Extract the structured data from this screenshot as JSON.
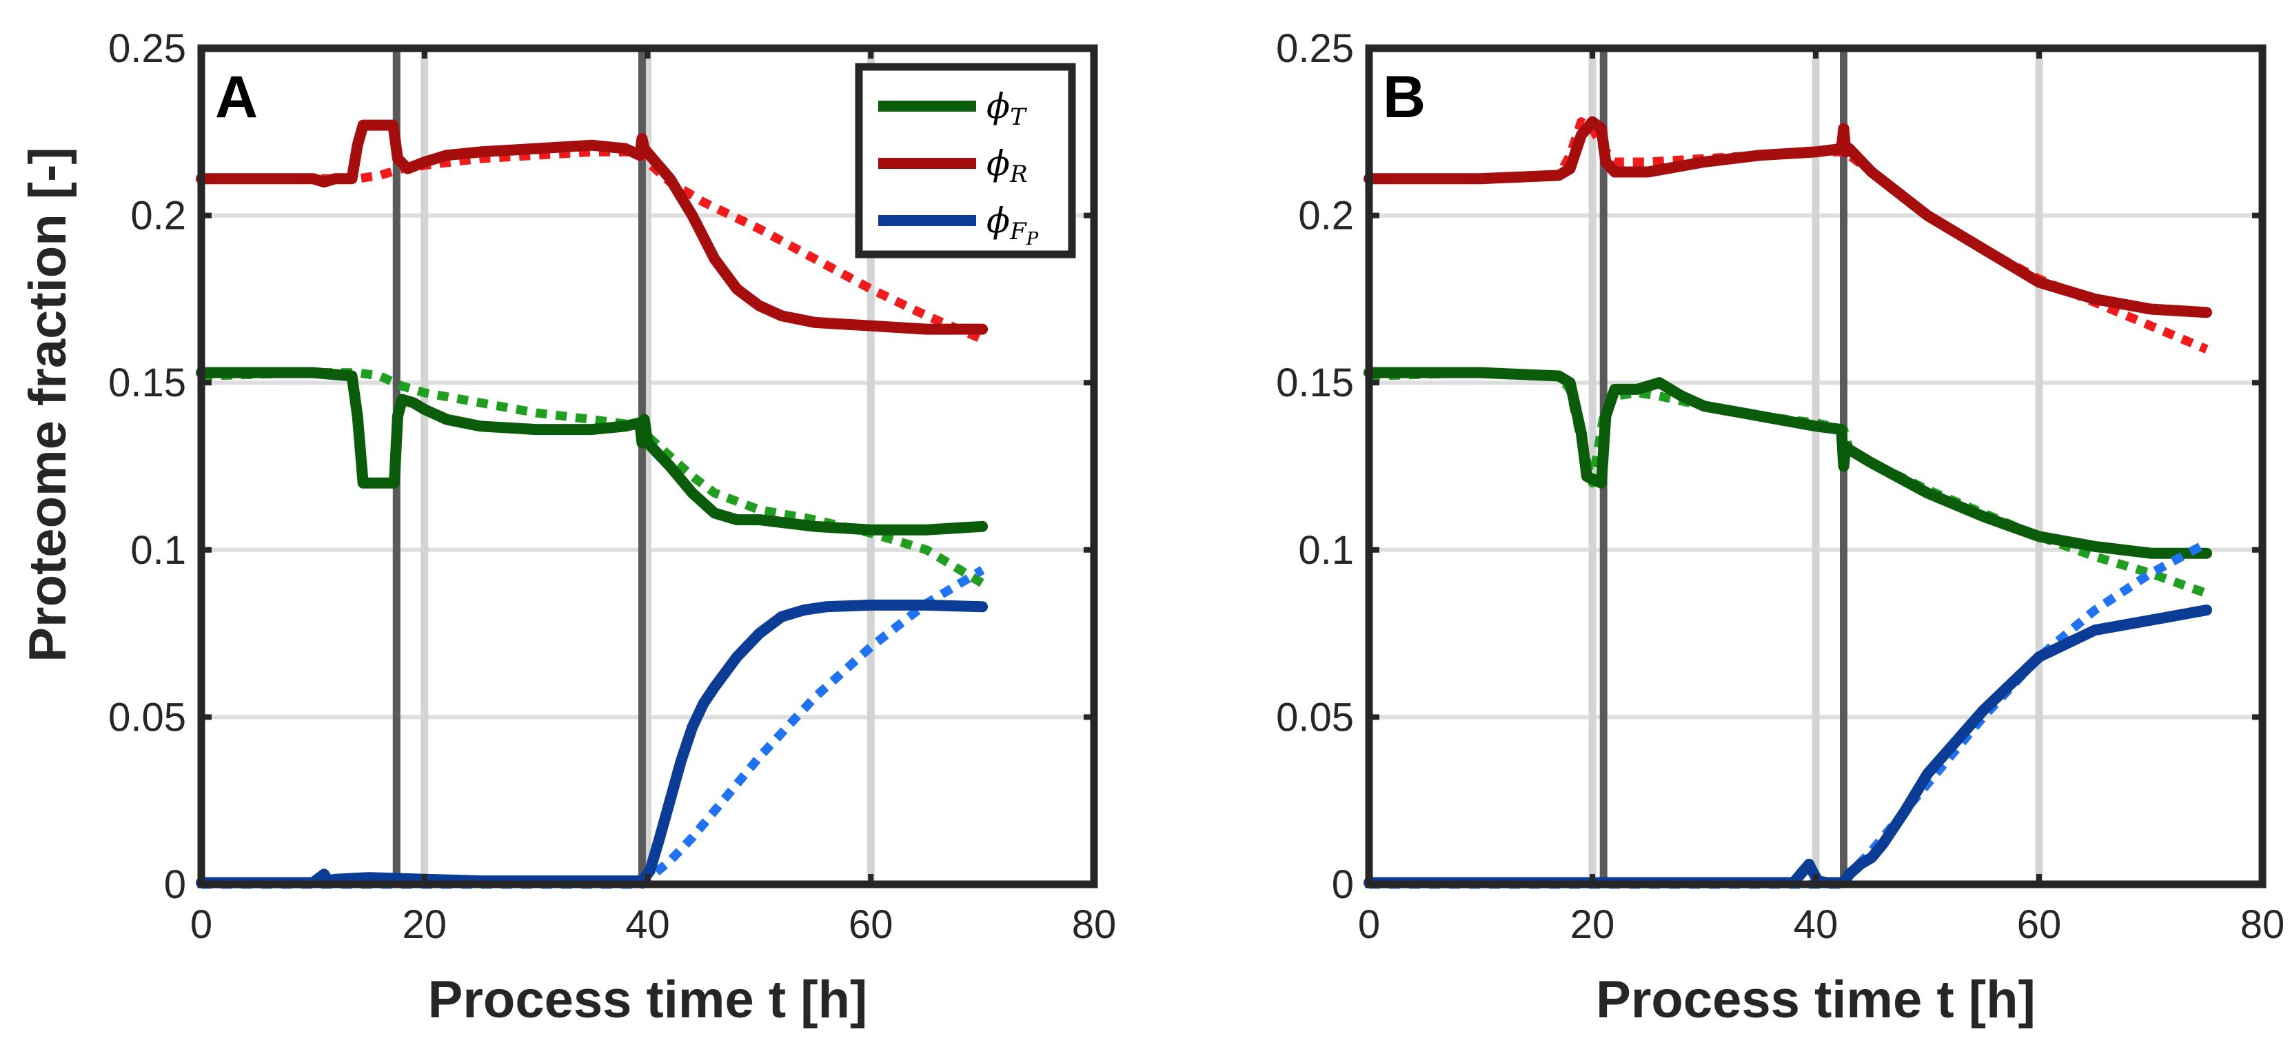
{
  "figure": {
    "y_axis_label": "Proteome fraction [-]",
    "legend": [
      {
        "symbol": "ϕ",
        "subscript": "T",
        "subsub": "",
        "color": "#0a5c0a"
      },
      {
        "symbol": "ϕ",
        "subscript": "R",
        "subsub": "",
        "color": "#a60d0d"
      },
      {
        "symbol": "ϕ",
        "subscript": "F",
        "subsub": "P",
        "color": "#0b3c96"
      }
    ],
    "colors": {
      "measured_T": "#0a5c0a",
      "model_T": "#1f9e1f",
      "measured_R": "#a60d0d",
      "model_R": "#f21a1a",
      "measured_FP": "#0b3c96",
      "model_FP": "#1f73f2",
      "event_line_dark": "#5a5a5a",
      "event_line_light": "#d4d4d4"
    }
  },
  "chart_data": [
    {
      "type": "line",
      "panel": "A",
      "xlabel": "Process time t [h]",
      "ylabel": "Proteome fraction [-]",
      "xlim": [
        0,
        80
      ],
      "ylim": [
        0,
        0.25
      ],
      "xticks": [
        0,
        20,
        40,
        60,
        80
      ],
      "xtick_labels": [
        "0",
        "20",
        "40",
        "60",
        "80"
      ],
      "yticks": [
        0,
        0.05,
        0.1,
        0.15,
        0.2,
        0.25
      ],
      "ytick_labels": [
        "0",
        "0.05",
        "0.1",
        "0.15",
        "0.2",
        "0.25"
      ],
      "grid": true,
      "legend_position": "top-right",
      "event_lines_dark": [
        17.5,
        39.5
      ],
      "event_lines_light": [
        20,
        40,
        60
      ],
      "series": [
        {
          "name": "ϕT measured",
          "key": "measured_T",
          "style": "solid",
          "x": [
            0,
            5,
            10,
            13.5,
            14.0,
            14.5,
            17.3,
            17.6,
            18.0,
            19,
            20,
            22,
            25,
            30,
            35,
            38,
            39.3,
            39.5,
            39.7,
            40,
            42,
            44,
            46,
            48,
            50,
            55,
            60,
            65,
            70
          ],
          "y": [
            0.153,
            0.153,
            0.153,
            0.152,
            0.14,
            0.12,
            0.12,
            0.14,
            0.145,
            0.144,
            0.142,
            0.139,
            0.137,
            0.136,
            0.136,
            0.137,
            0.138,
            0.132,
            0.139,
            0.132,
            0.125,
            0.117,
            0.111,
            0.109,
            0.109,
            0.107,
            0.106,
            0.106,
            0.107
          ]
        },
        {
          "name": "ϕT model",
          "key": "model_T",
          "style": "dotted",
          "x": [
            0,
            10,
            14,
            16,
            18,
            20,
            25,
            30,
            35,
            39.5,
            40,
            42,
            44,
            46,
            50,
            55,
            60,
            65,
            70
          ],
          "y": [
            0.152,
            0.153,
            0.153,
            0.152,
            0.149,
            0.147,
            0.144,
            0.141,
            0.139,
            0.137,
            0.134,
            0.128,
            0.122,
            0.117,
            0.112,
            0.109,
            0.105,
            0.1,
            0.09
          ]
        },
        {
          "name": "ϕR measured",
          "key": "measured_R",
          "style": "solid",
          "x": [
            0,
            5,
            10,
            11,
            12,
            13.5,
            14.0,
            14.5,
            17.2,
            17.6,
            18.5,
            20,
            22,
            25,
            30,
            35,
            38,
            39.3,
            39.5,
            39.7,
            40.2,
            42,
            44,
            46,
            48,
            50,
            52,
            55,
            60,
            65,
            70
          ],
          "y": [
            0.211,
            0.211,
            0.211,
            0.21,
            0.211,
            0.211,
            0.221,
            0.227,
            0.227,
            0.217,
            0.214,
            0.216,
            0.218,
            0.219,
            0.22,
            0.221,
            0.22,
            0.218,
            0.223,
            0.22,
            0.218,
            0.211,
            0.2,
            0.187,
            0.178,
            0.173,
            0.17,
            0.168,
            0.167,
            0.166,
            0.166
          ]
        },
        {
          "name": "ϕR model",
          "key": "model_R",
          "style": "dotted",
          "x": [
            0,
            10,
            14,
            16,
            18,
            20,
            25,
            30,
            35,
            39.5,
            40,
            42,
            45,
            50,
            55,
            60,
            65,
            70
          ],
          "y": [
            0.211,
            0.211,
            0.211,
            0.212,
            0.214,
            0.215,
            0.217,
            0.218,
            0.219,
            0.219,
            0.216,
            0.21,
            0.204,
            0.196,
            0.187,
            0.178,
            0.17,
            0.163
          ]
        },
        {
          "name": "ϕFP measured",
          "key": "measured_FP",
          "style": "solid",
          "x": [
            0,
            10,
            11,
            11.4,
            12,
            15,
            20,
            25,
            30,
            35,
            39.5,
            40.2,
            41,
            42,
            43,
            44,
            45,
            46,
            48,
            50,
            52,
            54,
            56,
            60,
            65,
            70
          ],
          "y": [
            0.0005,
            0.0005,
            0.003,
            0.001,
            0.0015,
            0.002,
            0.0015,
            0.001,
            0.001,
            0.001,
            0.001,
            0.004,
            0.013,
            0.025,
            0.037,
            0.047,
            0.054,
            0.059,
            0.068,
            0.075,
            0.08,
            0.082,
            0.083,
            0.0835,
            0.0835,
            0.083
          ]
        },
        {
          "name": "ϕFP model",
          "key": "model_FP",
          "style": "dotted",
          "x": [
            0,
            10,
            20,
            30,
            39.5,
            40,
            42,
            44,
            46,
            50,
            55,
            60,
            65,
            70
          ],
          "y": [
            0,
            0,
            0,
            0,
            0,
            0.0015,
            0.007,
            0.014,
            0.022,
            0.038,
            0.056,
            0.071,
            0.084,
            0.094
          ]
        }
      ]
    },
    {
      "type": "line",
      "panel": "B",
      "xlabel": "Process time t [h]",
      "ylabel": "",
      "xlim": [
        0,
        80
      ],
      "ylim": [
        0,
        0.25
      ],
      "xticks": [
        0,
        20,
        40,
        60,
        80
      ],
      "xtick_labels": [
        "0",
        "20",
        "40",
        "60",
        "80"
      ],
      "yticks": [
        0,
        0.05,
        0.1,
        0.15,
        0.2,
        0.25
      ],
      "ytick_labels": [
        "0",
        "0.05",
        "0.1",
        "0.15",
        "0.2",
        "0.25"
      ],
      "grid": true,
      "legend_position": "none",
      "event_lines_dark": [
        21,
        42.5
      ],
      "event_lines_light": [
        20,
        40,
        60
      ],
      "series": [
        {
          "name": "ϕT measured",
          "key": "measured_T",
          "style": "solid",
          "x": [
            0,
            10,
            17,
            18,
            19,
            19.5,
            20.8,
            21.2,
            22,
            24,
            26,
            28,
            30,
            35,
            40,
            42.3,
            42.5,
            42.7,
            43,
            45,
            50,
            55,
            60,
            65,
            70,
            75
          ],
          "y": [
            0.153,
            0.153,
            0.152,
            0.15,
            0.135,
            0.122,
            0.12,
            0.14,
            0.148,
            0.148,
            0.15,
            0.146,
            0.143,
            0.14,
            0.137,
            0.136,
            0.125,
            0.131,
            0.13,
            0.126,
            0.117,
            0.11,
            0.104,
            0.101,
            0.099,
            0.099
          ]
        },
        {
          "name": "ϕT model",
          "key": "model_T",
          "style": "dotted",
          "x": [
            0,
            10,
            17,
            18,
            19,
            20,
            21,
            22,
            24,
            26,
            30,
            35,
            40,
            42.5,
            43,
            45,
            50,
            55,
            60,
            65,
            70,
            75
          ],
          "y": [
            0.152,
            0.153,
            0.152,
            0.148,
            0.133,
            0.12,
            0.14,
            0.146,
            0.147,
            0.146,
            0.143,
            0.14,
            0.138,
            0.136,
            0.13,
            0.126,
            0.118,
            0.111,
            0.104,
            0.098,
            0.093,
            0.087
          ]
        },
        {
          "name": "ϕR measured",
          "key": "measured_R",
          "style": "solid",
          "x": [
            0,
            10,
            17,
            18,
            19,
            20,
            20.8,
            21.2,
            22,
            25,
            30,
            35,
            40,
            42.3,
            42.5,
            42.7,
            43,
            45,
            50,
            55,
            60,
            65,
            70,
            75
          ],
          "y": [
            0.211,
            0.211,
            0.212,
            0.214,
            0.224,
            0.228,
            0.226,
            0.216,
            0.213,
            0.213,
            0.216,
            0.218,
            0.219,
            0.22,
            0.226,
            0.219,
            0.22,
            0.213,
            0.2,
            0.19,
            0.18,
            0.175,
            0.172,
            0.171
          ]
        },
        {
          "name": "ϕR model",
          "key": "model_R",
          "style": "dotted",
          "x": [
            0,
            10,
            17,
            18,
            19,
            20,
            21,
            22,
            25,
            30,
            35,
            40,
            42.5,
            43,
            45,
            50,
            55,
            60,
            65,
            70,
            75
          ],
          "y": [
            0.211,
            0.211,
            0.212,
            0.218,
            0.228,
            0.226,
            0.22,
            0.216,
            0.216,
            0.217,
            0.218,
            0.219,
            0.219,
            0.218,
            0.213,
            0.2,
            0.19,
            0.181,
            0.174,
            0.167,
            0.16
          ]
        },
        {
          "name": "ϕFP measured",
          "key": "measured_FP",
          "style": "solid",
          "x": [
            0,
            10,
            20,
            30,
            38,
            39.4,
            39.7,
            40.2,
            41,
            42.5,
            43,
            44,
            45,
            46,
            48,
            50,
            55,
            60,
            65,
            70,
            75
          ],
          "y": [
            0.0005,
            0.0005,
            0.0005,
            0.0005,
            0.0005,
            0.006,
            0.004,
            0.001,
            0.0005,
            0.0005,
            0.003,
            0.006,
            0.008,
            0.012,
            0.022,
            0.033,
            0.052,
            0.068,
            0.076,
            0.079,
            0.082
          ]
        },
        {
          "name": "ϕFP model",
          "key": "model_FP",
          "style": "dotted",
          "x": [
            0,
            10,
            20,
            30,
            40,
            42.5,
            43,
            45,
            50,
            55,
            60,
            65,
            70,
            75
          ],
          "y": [
            0,
            0,
            0,
            0,
            0,
            0,
            0.003,
            0.01,
            0.03,
            0.05,
            0.068,
            0.082,
            0.093,
            0.102
          ]
        }
      ]
    }
  ]
}
